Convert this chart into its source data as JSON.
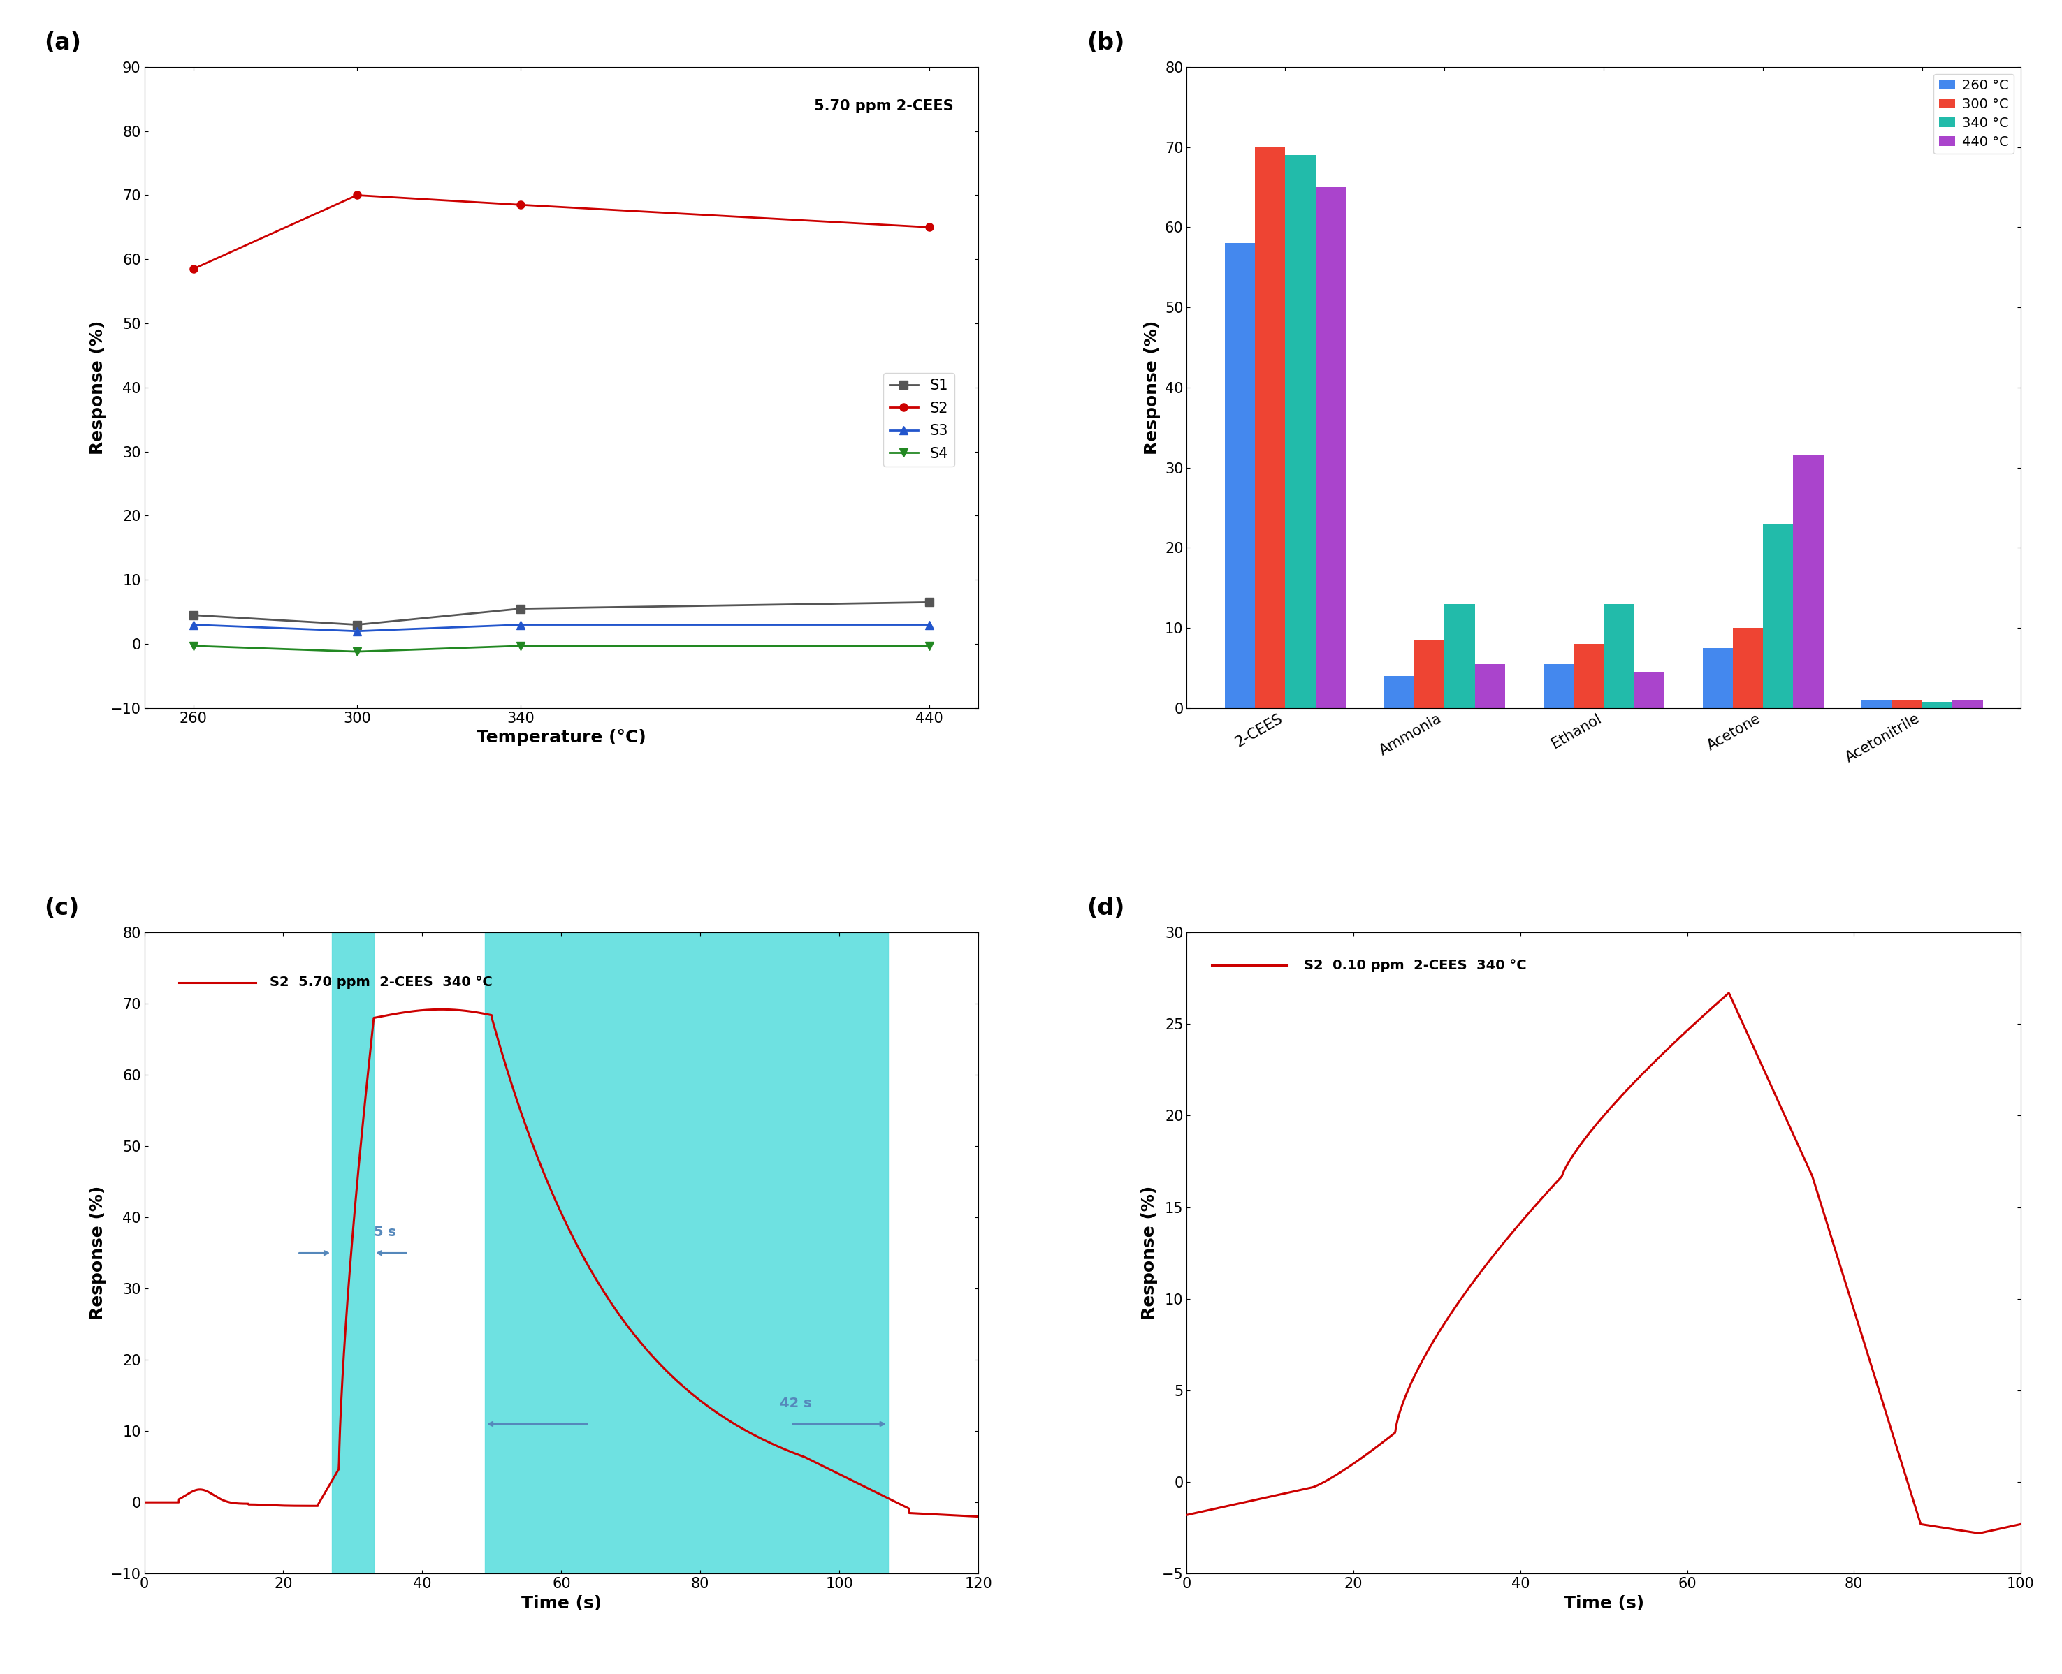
{
  "fig_width": 29.51,
  "fig_height": 23.97,
  "panel_a": {
    "temperatures": [
      260,
      300,
      340,
      440
    ],
    "S1": [
      4.5,
      3.0,
      5.5,
      6.5
    ],
    "S2": [
      58.5,
      70.0,
      68.5,
      65.0
    ],
    "S3": [
      3.0,
      2.0,
      3.0,
      3.0
    ],
    "S4": [
      -0.3,
      -1.2,
      -0.3,
      -0.3
    ],
    "colors": {
      "S1": "#555555",
      "S2": "#cc0000",
      "S3": "#2255cc",
      "S4": "#228822"
    },
    "markers": {
      "S1": "s",
      "S2": "o",
      "S3": "^",
      "S4": "v"
    },
    "ylim": [
      -10,
      90
    ],
    "yticks": [
      -10,
      0,
      10,
      20,
      30,
      40,
      50,
      60,
      70,
      80,
      90
    ],
    "xlabel": "Temperature (°C)",
    "ylabel": "Response (%)",
    "annotation": "5.70 ppm 2-CEES",
    "title": "(a)"
  },
  "panel_b": {
    "categories": [
      "2-CEES",
      "Ammonia",
      "Ethanol",
      "Acetone",
      "Acetonitrile"
    ],
    "temps": [
      "260 °C",
      "300 °C",
      "340 °C",
      "440 °C"
    ],
    "colors": [
      "#4488ee",
      "#ee4433",
      "#22bbaa",
      "#aa44cc"
    ],
    "data": {
      "260 °C": [
        58.0,
        4.0,
        5.5,
        7.5,
        1.0
      ],
      "300 °C": [
        70.0,
        8.5,
        8.0,
        10.0,
        1.0
      ],
      "340 °C": [
        69.0,
        13.0,
        13.0,
        23.0,
        0.8
      ],
      "440 °C": [
        65.0,
        5.5,
        4.5,
        31.5,
        1.0
      ]
    },
    "ylim": [
      0,
      80
    ],
    "yticks": [
      0,
      10,
      20,
      30,
      40,
      50,
      60,
      70,
      80
    ],
    "ylabel": "Response (%)",
    "title": "(b)"
  },
  "panel_c": {
    "xlabel": "Time (s)",
    "ylabel": "Response (%)",
    "ylim": [
      -10,
      80
    ],
    "xlim": [
      0,
      120
    ],
    "yticks": [
      -10,
      0,
      10,
      20,
      30,
      40,
      50,
      60,
      70,
      80
    ],
    "xticks": [
      0,
      20,
      40,
      60,
      80,
      100,
      120
    ],
    "legend_text": "S2  5.70 ppm  2-CEES  340 °C",
    "span1_start": 27,
    "span1_end": 33,
    "span2_start": 49,
    "span2_end": 107,
    "title": "(c)",
    "cyan_color": "#5EDEDE"
  },
  "panel_d": {
    "xlabel": "Time (s)",
    "ylabel": "Response (%)",
    "ylim": [
      -5,
      30
    ],
    "xlim": [
      0,
      100
    ],
    "yticks": [
      -5,
      0,
      5,
      10,
      15,
      20,
      25,
      30
    ],
    "xticks": [
      0,
      20,
      40,
      60,
      80,
      100
    ],
    "legend_text": "S2  0.10 ppm  2-CEES  340 °C",
    "title": "(d)"
  }
}
